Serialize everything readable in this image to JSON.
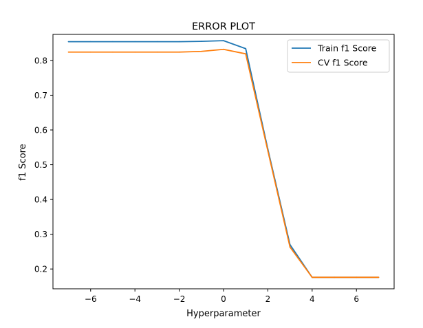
{
  "chart_data": {
    "type": "line",
    "title": "ERROR PLOT",
    "xlabel": "Hyperparameter",
    "ylabel": "f1 Score",
    "xlim": [
      -7.7,
      7.7
    ],
    "ylim": [
      0.143,
      0.875
    ],
    "xticks": [
      -6,
      -4,
      -2,
      0,
      2,
      4,
      6
    ],
    "xtick_labels": [
      "−6",
      "−4",
      "−2",
      "0",
      "2",
      "4",
      "6"
    ],
    "yticks": [
      0.2,
      0.3,
      0.4,
      0.5,
      0.6,
      0.7,
      0.8
    ],
    "ytick_labels": [
      "0.2",
      "0.3",
      "0.4",
      "0.5",
      "0.6",
      "0.7",
      "0.8"
    ],
    "grid": false,
    "legend_position": "upper right",
    "series": [
      {
        "name": "Train f1 Score",
        "color": "#1f77b4",
        "x": [
          -7,
          -6,
          -5,
          -4,
          -3,
          -2,
          -1,
          0,
          1,
          2,
          3,
          4,
          5,
          6,
          7
        ],
        "y": [
          0.854,
          0.854,
          0.854,
          0.854,
          0.854,
          0.854,
          0.855,
          0.857,
          0.834,
          0.545,
          0.27,
          0.176,
          0.176,
          0.176,
          0.176
        ]
      },
      {
        "name": "CV f1 Score",
        "color": "#ff7f0e",
        "x": [
          -7,
          -6,
          -5,
          -4,
          -3,
          -2,
          -1,
          0,
          1,
          2,
          3,
          4,
          5,
          6,
          7
        ],
        "y": [
          0.824,
          0.824,
          0.824,
          0.824,
          0.824,
          0.824,
          0.826,
          0.832,
          0.819,
          0.54,
          0.263,
          0.176,
          0.176,
          0.176,
          0.176
        ]
      }
    ]
  }
}
